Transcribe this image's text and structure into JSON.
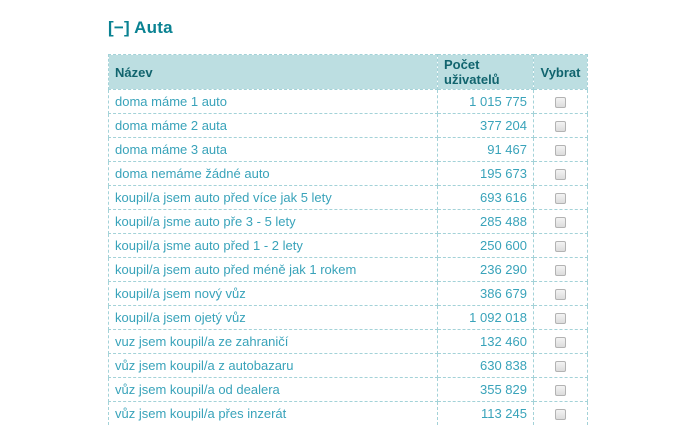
{
  "section": {
    "collapse_marker": "[−]",
    "title": "Auta"
  },
  "table": {
    "columns": [
      "Název",
      "Počet uživatelů",
      "Vybrat"
    ],
    "rows": [
      {
        "name": "doma máme 1 auto",
        "count": "1 015 775"
      },
      {
        "name": "doma máme 2 auta",
        "count": "377 204"
      },
      {
        "name": "doma máme 3 auta",
        "count": "91 467"
      },
      {
        "name": "doma nemáme žádné auto",
        "count": "195 673"
      },
      {
        "name": "koupil/a jsem auto před více jak 5 lety",
        "count": "693 616"
      },
      {
        "name": "koupil/a jsme auto pře 3 - 5 lety",
        "count": "285 488"
      },
      {
        "name": "koupil/a jsme auto před 1 - 2 lety",
        "count": "250 600"
      },
      {
        "name": "koupil/a jsem auto před méně jak 1 rokem",
        "count": "236 290"
      },
      {
        "name": "koupil/a jsem nový vůz",
        "count": "386 679"
      },
      {
        "name": "koupil/a jsem ojetý vůz",
        "count": "1 092 018"
      },
      {
        "name": "vuz jsem koupil/a ze zahraničí",
        "count": "132 460"
      },
      {
        "name": "vůz jsem koupil/a z autobazaru",
        "count": "630 838"
      },
      {
        "name": "vůz jsem koupil/a od dealera",
        "count": "355 829"
      },
      {
        "name": "vůz jsem koupil/a přes inzerát",
        "count": "113 245"
      }
    ]
  },
  "colors": {
    "title_text": "#0A8292",
    "header_bg": "#BCDEE1",
    "header_text": "#11646E",
    "row_text": "#39A3BA",
    "border": "#A3D2D8"
  }
}
